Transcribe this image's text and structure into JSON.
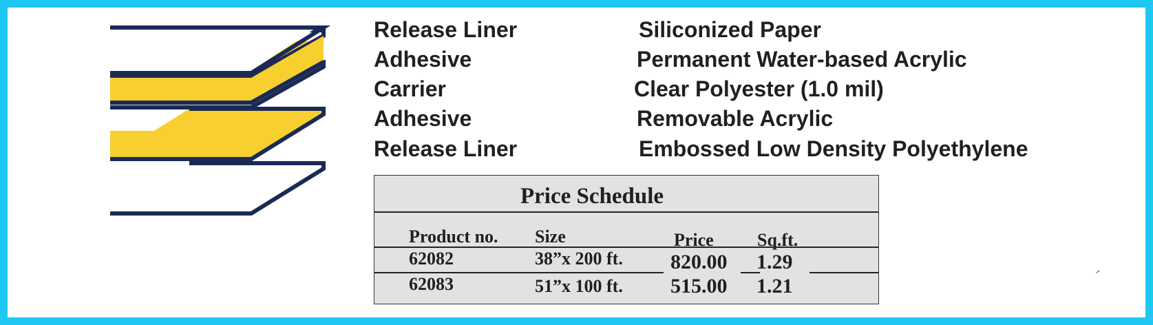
{
  "colors": {
    "frame": "#1ec8f2",
    "navy": "#1b2a55",
    "adhesive": "#f7cf2e",
    "carrier": "#cfcfcf",
    "table_bg": "#e2e2e2"
  },
  "construction": [
    {
      "layer": "Release Liner",
      "material": "Siliconized Paper"
    },
    {
      "layer": "Adhesive",
      "material": "Permanent Water-based Acrylic"
    },
    {
      "layer": "Carrier",
      "material": "Clear Polyester (1.0 mil)"
    },
    {
      "layer": "Adhesive",
      "material": "Removable Acrylic"
    },
    {
      "layer": "Release Liner",
      "material": "Embossed Low Density Polyethylene"
    }
  ],
  "price_schedule": {
    "title": "Price Schedule",
    "headers": [
      "Product no.",
      "Size",
      "Price",
      "Sq.ft."
    ],
    "rows": [
      [
        "62082",
        "38”x 200 ft.",
        "820.00",
        "1.29"
      ],
      [
        "62083",
        "51”x 100 ft.",
        "515.00",
        "1.21"
      ]
    ]
  }
}
